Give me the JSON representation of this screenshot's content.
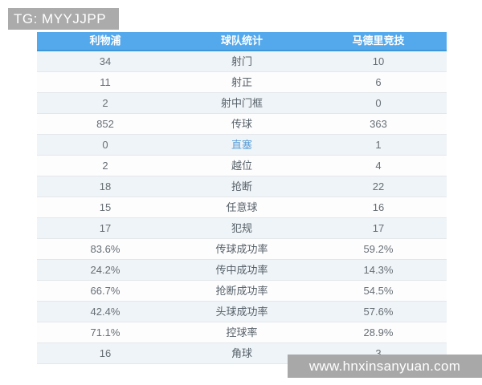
{
  "watermarks": {
    "tg_badge": "TG: MYYJJPP",
    "site_url": "www.hnxinsanyuan.com"
  },
  "table": {
    "header": {
      "home": "利物浦",
      "stat": "球队统计",
      "away": "马德里竞技"
    },
    "rows": [
      {
        "home": "34",
        "label": "射门",
        "away": "10",
        "highlighted": false
      },
      {
        "home": "11",
        "label": "射正",
        "away": "6",
        "highlighted": false
      },
      {
        "home": "2",
        "label": "射中门框",
        "away": "0",
        "highlighted": false
      },
      {
        "home": "852",
        "label": "传球",
        "away": "363",
        "highlighted": false
      },
      {
        "home": "0",
        "label": "直塞",
        "away": "1",
        "highlighted": true
      },
      {
        "home": "2",
        "label": "越位",
        "away": "4",
        "highlighted": false
      },
      {
        "home": "18",
        "label": "抢断",
        "away": "22",
        "highlighted": false
      },
      {
        "home": "15",
        "label": "任意球",
        "away": "16",
        "highlighted": false
      },
      {
        "home": "17",
        "label": "犯规",
        "away": "17",
        "highlighted": false
      },
      {
        "home": "83.6%",
        "label": "传球成功率",
        "away": "59.2%",
        "highlighted": false
      },
      {
        "home": "24.2%",
        "label": "传中成功率",
        "away": "14.3%",
        "highlighted": false
      },
      {
        "home": "66.7%",
        "label": "抢断成功率",
        "away": "54.5%",
        "highlighted": false
      },
      {
        "home": "42.4%",
        "label": "头球成功率",
        "away": "57.6%",
        "highlighted": false
      },
      {
        "home": "71.1%",
        "label": "控球率",
        "away": "28.9%",
        "highlighted": false
      },
      {
        "home": "16",
        "label": "角球",
        "away": "3",
        "highlighted": false
      }
    ]
  },
  "colors": {
    "header_bg": "#54A9EC",
    "header_border": "#3D97D8",
    "row_tint": "#EFF4F8",
    "row_white": "#FDFDFE",
    "separator": "#E4E7EA",
    "value_text": "#666E74",
    "label_text": "#576169",
    "highlight_label": "#5C9FD6",
    "badge_gray": "#ABABAB",
    "watermark_gray": "#A8A8A8"
  }
}
